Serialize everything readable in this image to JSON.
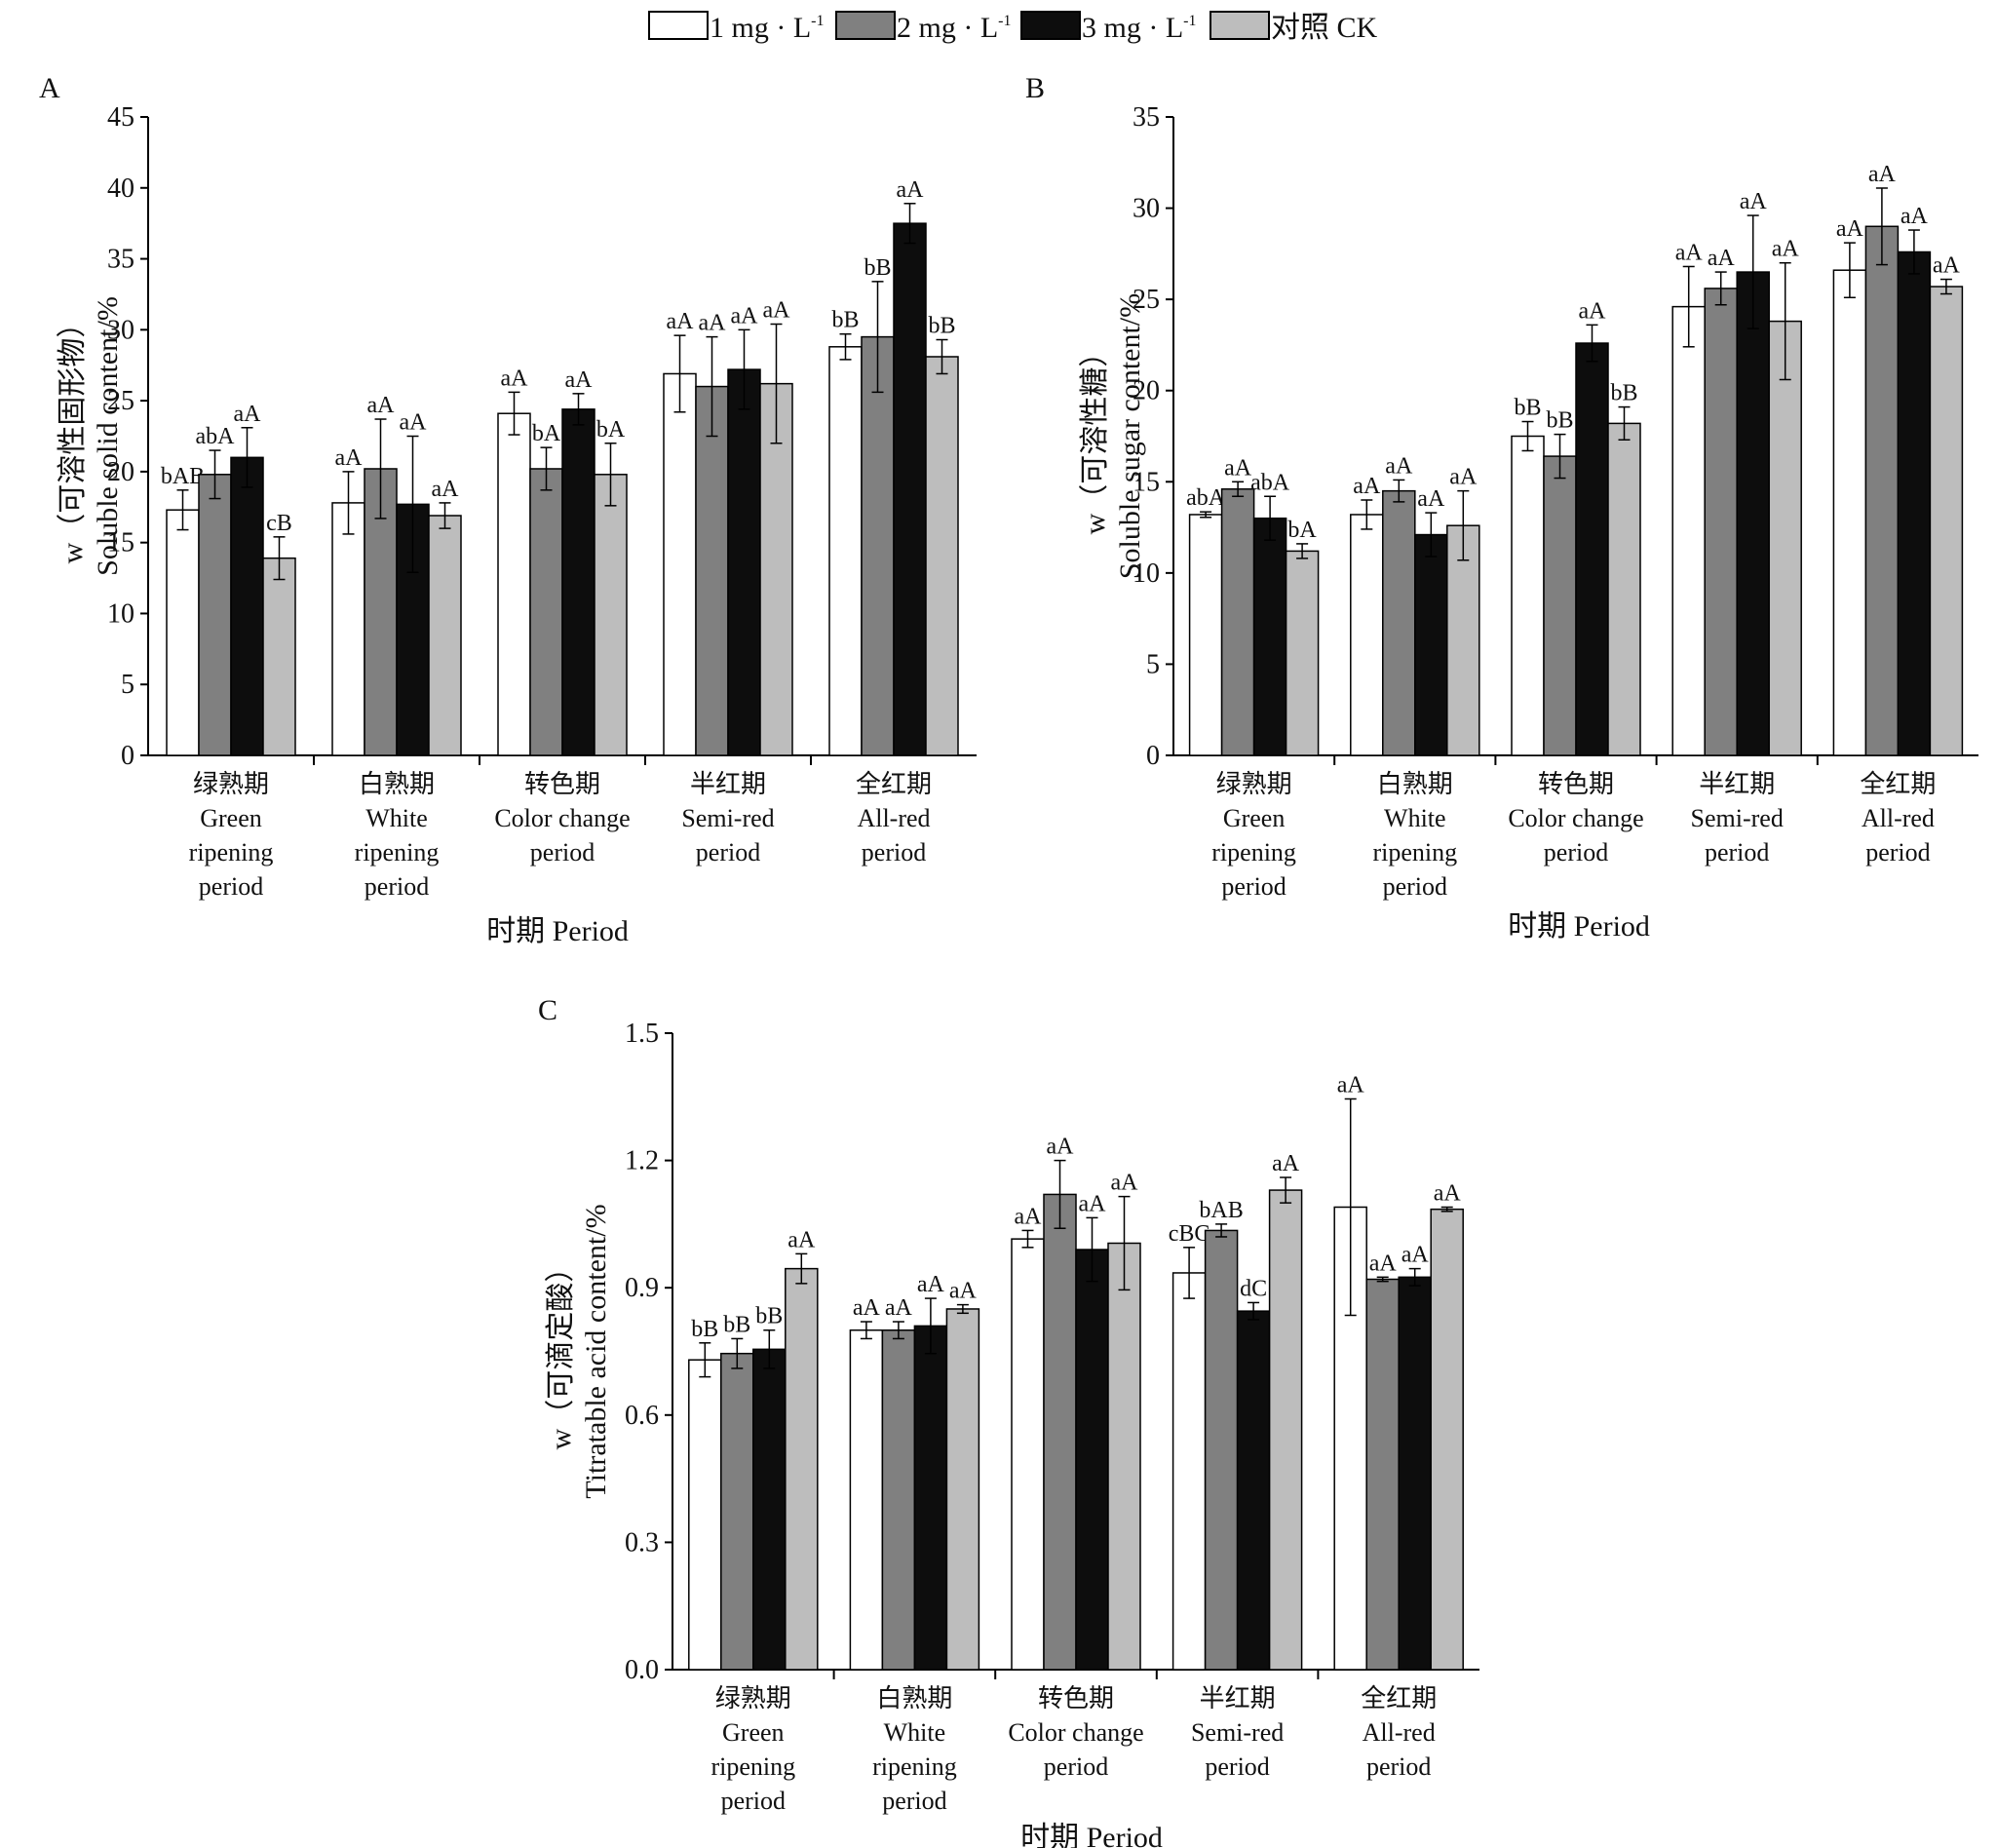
{
  "legend": [
    {
      "label": "1 mg · L",
      "sup": "-1",
      "color": "#ffffff"
    },
    {
      "label": "2 mg · L",
      "sup": "-1",
      "color": "#808080"
    },
    {
      "label": "3 mg · L",
      "sup": "-1",
      "color": "#0d0d0d"
    },
    {
      "label": "对照 CK",
      "sup": "",
      "color": "#bdbdbd"
    }
  ],
  "categories": [
    [
      "绿熟期",
      "Green",
      "ripening",
      "period"
    ],
    [
      "白熟期",
      "White",
      "ripening",
      "period"
    ],
    [
      "转色期",
      "Color change",
      "period"
    ],
    [
      "半红期",
      "Semi-red",
      "period"
    ],
    [
      "全红期",
      "All-red",
      "period"
    ]
  ],
  "chart_data": [
    {
      "panel": "A",
      "type": "bar",
      "ylabel_zh": "w（可溶性固形物）",
      "ylabel_en": "Soluble solid content/%",
      "xlabel": "时期 Period",
      "ylim": [
        0,
        45
      ],
      "yticks": [
        "0",
        "5",
        "10",
        "15",
        "20",
        "25",
        "30",
        "35",
        "40",
        "45"
      ],
      "series": [
        {
          "name": "1 mg·L-1",
          "values": [
            17.3,
            17.8,
            24.1,
            26.9,
            28.8
          ],
          "err": [
            1.4,
            2.2,
            1.5,
            2.7,
            0.9
          ],
          "labels": [
            "bAB",
            "aA",
            "aA",
            "aA",
            "bB"
          ]
        },
        {
          "name": "2 mg·L-1",
          "values": [
            19.8,
            20.2,
            20.2,
            26.0,
            29.5
          ],
          "err": [
            1.7,
            3.5,
            1.5,
            3.5,
            3.9
          ],
          "labels": [
            "abA",
            "aA",
            "bA",
            "aA",
            "bB"
          ]
        },
        {
          "name": "3 mg·L-1",
          "values": [
            21.0,
            17.7,
            24.4,
            27.2,
            37.5
          ],
          "err": [
            2.1,
            4.8,
            1.1,
            2.8,
            1.4
          ],
          "labels": [
            "aA",
            "aA",
            "aA",
            "aA",
            "aA"
          ]
        },
        {
          "name": "对照CK",
          "values": [
            13.9,
            16.9,
            19.8,
            26.2,
            28.1
          ],
          "err": [
            1.5,
            0.9,
            2.2,
            4.2,
            1.2
          ],
          "labels": [
            "cB",
            "aA",
            "bA",
            "aA",
            "bB"
          ]
        }
      ]
    },
    {
      "panel": "B",
      "type": "bar",
      "ylabel_zh": "w（可溶性糖）",
      "ylabel_en": "Soluble sugar content/%",
      "xlabel": "时期 Period",
      "ylim": [
        0,
        35
      ],
      "yticks": [
        "0",
        "5",
        "10",
        "15",
        "20",
        "25",
        "30",
        "35"
      ],
      "series": [
        {
          "name": "1 mg·L-1",
          "values": [
            13.2,
            13.2,
            17.5,
            24.6,
            26.6
          ],
          "err": [
            0.15,
            0.8,
            0.8,
            2.2,
            1.5
          ],
          "labels": [
            "abA",
            "aA",
            "bB",
            "aA",
            "aA"
          ]
        },
        {
          "name": "2 mg·L-1",
          "values": [
            14.6,
            14.5,
            16.4,
            25.6,
            29.0
          ],
          "err": [
            0.4,
            0.6,
            1.2,
            0.9,
            2.1
          ],
          "labels": [
            "aA",
            "aA",
            "bB",
            "aA",
            "aA"
          ]
        },
        {
          "name": "3 mg·L-1",
          "values": [
            13.0,
            12.1,
            22.6,
            26.5,
            27.6
          ],
          "err": [
            1.2,
            1.2,
            1.0,
            3.1,
            1.2
          ],
          "labels": [
            "abA",
            "aA",
            "aA",
            "aA",
            "aA"
          ]
        },
        {
          "name": "对照CK",
          "values": [
            11.2,
            12.6,
            18.2,
            23.8,
            25.7
          ],
          "err": [
            0.4,
            1.9,
            0.9,
            3.2,
            0.4
          ],
          "labels": [
            "bA",
            "aA",
            "bB",
            "aA",
            "aA"
          ]
        }
      ]
    },
    {
      "panel": "C",
      "type": "bar",
      "ylabel_zh": "w（可滴定酸）",
      "ylabel_en": "Titratable acid content/%",
      "xlabel": "时期 Period",
      "ylim": [
        0,
        1.5
      ],
      "yticks": [
        "0.0",
        "0.3",
        "0.6",
        "0.9",
        "1.2",
        "1.5"
      ],
      "series": [
        {
          "name": "1 mg·L-1",
          "values": [
            0.73,
            0.8,
            1.015,
            0.935,
            1.09
          ],
          "err": [
            0.04,
            0.02,
            0.02,
            0.06,
            0.255
          ],
          "labels": [
            "bB",
            "aA",
            "aA",
            "cBC",
            "aA"
          ]
        },
        {
          "name": "2 mg·L-1",
          "values": [
            0.745,
            0.8,
            1.12,
            1.035,
            0.92
          ],
          "err": [
            0.035,
            0.02,
            0.08,
            0.015,
            0.005
          ],
          "labels": [
            "bB",
            "aA",
            "aA",
            "bAB",
            "aA"
          ]
        },
        {
          "name": "3 mg·L-1",
          "values": [
            0.755,
            0.81,
            0.99,
            0.845,
            0.925
          ],
          "err": [
            0.045,
            0.065,
            0.075,
            0.02,
            0.02
          ],
          "labels": [
            "bB",
            "aA",
            "aA",
            "dC",
            "aA"
          ]
        },
        {
          "name": "对照CK",
          "values": [
            0.945,
            0.85,
            1.005,
            1.13,
            1.085
          ],
          "err": [
            0.035,
            0.01,
            0.11,
            0.03,
            0.005
          ],
          "labels": [
            "aA",
            "aA",
            "aA",
            "aA",
            "aA"
          ]
        }
      ]
    }
  ]
}
